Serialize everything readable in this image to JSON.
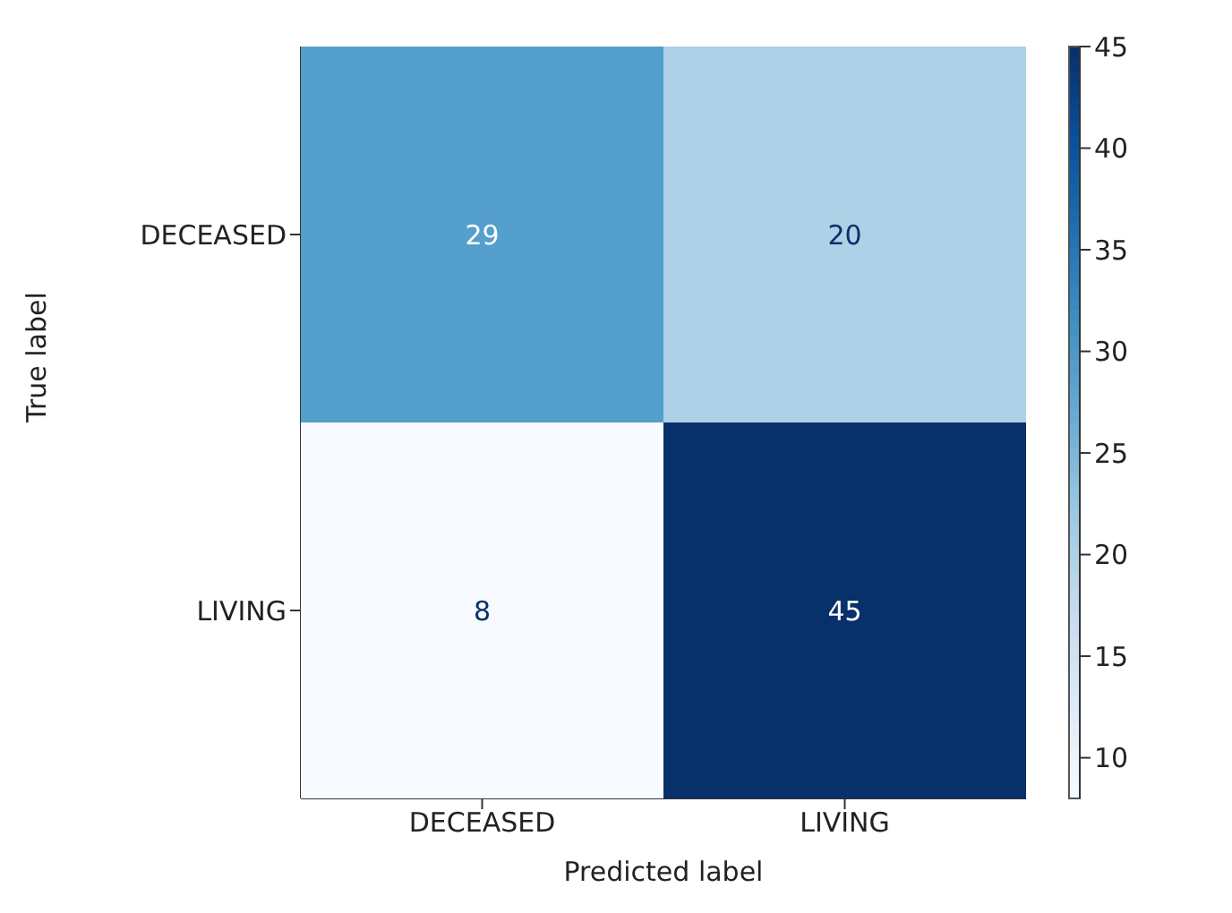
{
  "chart_data": {
    "type": "heatmap",
    "xlabel": "Predicted label",
    "ylabel": "True label",
    "categories": [
      "DECEASED",
      "LIVING"
    ],
    "y_categories": [
      "DECEASED",
      "LIVING"
    ],
    "cells": [
      [
        29,
        20
      ],
      [
        8,
        45
      ]
    ],
    "data_labels": true,
    "clim": [
      8,
      45
    ],
    "cticks": [
      10,
      15,
      20,
      25,
      30,
      35,
      40,
      45
    ]
  }
}
